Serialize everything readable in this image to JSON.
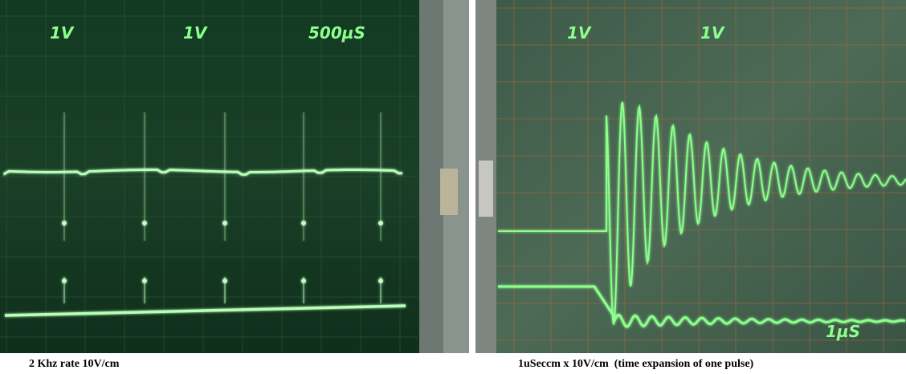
{
  "left_screen": {
    "labels": [
      "1V",
      "1V",
      "500µS"
    ]
  },
  "right_screen": {
    "labels": [
      "1V",
      "1V",
      "1µS"
    ]
  },
  "captions": [
    "2 Khz rate 10V/cm",
    "1uSeccm x 10V/cm  (time expansion of one pulse)"
  ]
}
